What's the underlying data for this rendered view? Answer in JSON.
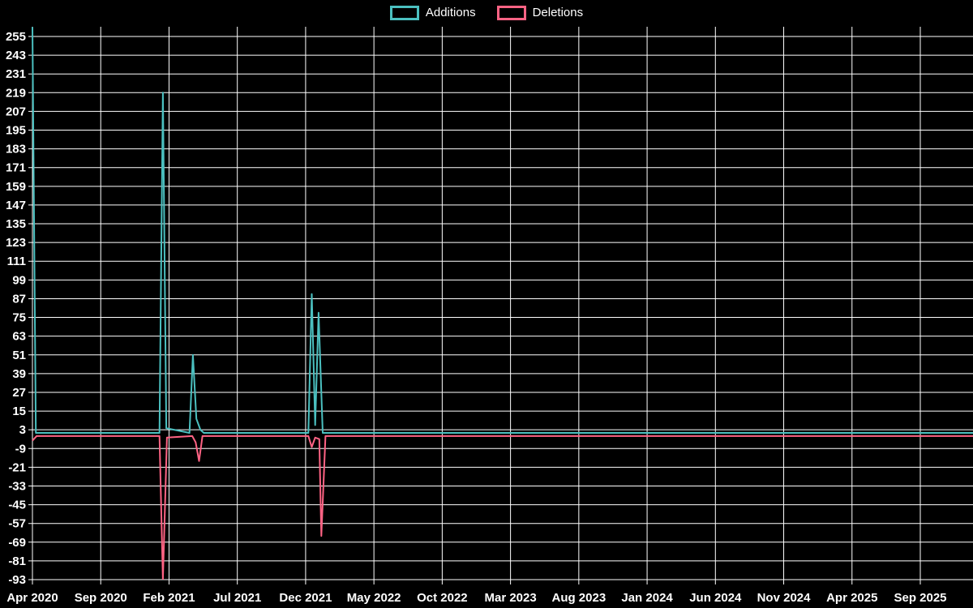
{
  "legend": {
    "items": [
      {
        "label": "Additions",
        "color": "#4bc0c0"
      },
      {
        "label": "Deletions",
        "color": "#ff6384"
      }
    ]
  },
  "chart_data": {
    "type": "line",
    "title": "",
    "background": "#000000",
    "grid_color": "#ffffff",
    "text_color": "#ffffff",
    "legend_position": "top",
    "grid": true,
    "x_axis": {
      "tick_labels": [
        "Apr 2020",
        "Sep 2020",
        "Feb 2021",
        "Jul 2021",
        "Dec 2021",
        "May 2022",
        "Oct 2022",
        "Mar 2023",
        "Aug 2023",
        "Jan 2024",
        "Jun 2024",
        "Nov 2024",
        "Apr 2025",
        "Sep 2025"
      ],
      "months_per_tick": 5,
      "start": "Apr 2020",
      "end": "Sep 2025"
    },
    "y_axis": {
      "min": -93,
      "max": 255,
      "step": 12,
      "tick_labels": [
        255,
        243,
        231,
        219,
        207,
        195,
        183,
        171,
        159,
        147,
        135,
        123,
        111,
        99,
        87,
        75,
        63,
        51,
        39,
        27,
        15,
        3,
        -9,
        -21,
        -33,
        -45,
        -57,
        -69,
        -81,
        -93
      ]
    },
    "series": [
      {
        "name": "Additions",
        "color": "#4bc0c0",
        "baseline": 1,
        "points": [
          [
            0,
            261
          ],
          [
            0.25,
            1
          ],
          [
            9.3,
            1
          ],
          [
            9.55,
            219
          ],
          [
            9.8,
            4
          ],
          [
            11.5,
            1
          ],
          [
            11.75,
            51
          ],
          [
            12.0,
            10
          ],
          [
            12.3,
            3
          ],
          [
            12.55,
            1
          ],
          [
            20.2,
            1
          ],
          [
            20.45,
            90
          ],
          [
            20.7,
            6
          ],
          [
            20.95,
            78
          ],
          [
            21.25,
            1
          ],
          [
            69,
            1
          ]
        ]
      },
      {
        "name": "Deletions",
        "color": "#ff6384",
        "baseline": -1,
        "points": [
          [
            0,
            -4
          ],
          [
            0.3,
            -1
          ],
          [
            9.3,
            -1
          ],
          [
            9.55,
            -93
          ],
          [
            9.85,
            -2
          ],
          [
            11.7,
            -1
          ],
          [
            11.95,
            -5
          ],
          [
            12.2,
            -17
          ],
          [
            12.45,
            -1
          ],
          [
            20.2,
            -1
          ],
          [
            20.45,
            -8
          ],
          [
            20.7,
            -2
          ],
          [
            21.0,
            -3
          ],
          [
            21.15,
            -65
          ],
          [
            21.45,
            -1
          ],
          [
            69,
            -1
          ]
        ]
      }
    ]
  }
}
